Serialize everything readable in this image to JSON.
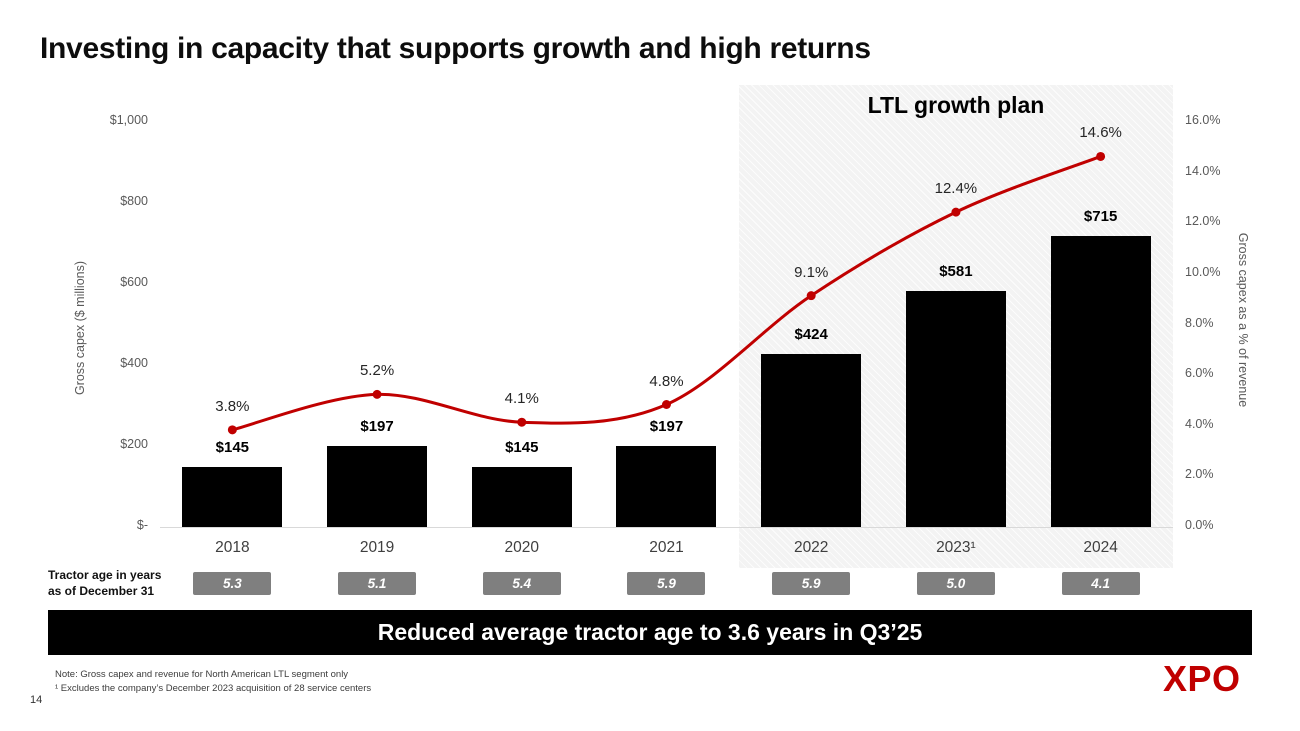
{
  "title": "Investing in capacity that supports growth and high returns",
  "page_number": "14",
  "logo_text": "XPO",
  "chart_data": {
    "type": "combo",
    "region_label": "LTL growth plan",
    "region_categories": [
      "2022",
      "2023¹",
      "2024"
    ],
    "categories": [
      "2018",
      "2019",
      "2020",
      "2021",
      "2022",
      "2023¹",
      "2024"
    ],
    "series": [
      {
        "name": "Gross capex ($ millions)",
        "type": "bar",
        "color": "#000000",
        "values": [
          145,
          197,
          145,
          197,
          424,
          581,
          715
        ],
        "labels": [
          "$145",
          "$197",
          "$145",
          "$197",
          "$424",
          "$581",
          "$715"
        ]
      },
      {
        "name": "Gross capex as a % of revenue",
        "type": "line",
        "color": "#c00000",
        "values": [
          3.8,
          5.2,
          4.1,
          4.8,
          9.1,
          12.4,
          14.6
        ],
        "labels": [
          "3.8%",
          "5.2%",
          "4.1%",
          "4.8%",
          "9.1%",
          "12.4%",
          "14.6%"
        ]
      }
    ],
    "ylabel_left": "Gross capex ($ millions)",
    "ylabel_right": "Gross capex as a % of revenue",
    "left_axis": {
      "min": 0,
      "max": 1000,
      "ticks": [
        {
          "label": "$1,000",
          "value": 1000
        },
        {
          "label": "$800",
          "value": 800
        },
        {
          "label": "$600",
          "value": 600
        },
        {
          "label": "$400",
          "value": 400
        },
        {
          "label": "$200",
          "value": 200
        },
        {
          "label": "$-",
          "value": 0
        }
      ]
    },
    "right_axis": {
      "min": 0,
      "max": 16,
      "ticks": [
        {
          "label": "16.0%",
          "value": 16
        },
        {
          "label": "14.0%",
          "value": 14
        },
        {
          "label": "12.0%",
          "value": 12
        },
        {
          "label": "10.0%",
          "value": 10
        },
        {
          "label": "8.0%",
          "value": 8
        },
        {
          "label": "6.0%",
          "value": 6
        },
        {
          "label": "4.0%",
          "value": 4
        },
        {
          "label": "2.0%",
          "value": 2
        },
        {
          "label": "0.0%",
          "value": 0
        }
      ]
    },
    "grid": "off",
    "legend": "none"
  },
  "tractor": {
    "label_line1": "Tractor age in years",
    "label_line2": "as of December 31",
    "values": [
      "5.3",
      "5.1",
      "5.4",
      "5.9",
      "5.9",
      "5.0",
      "4.1"
    ]
  },
  "banner": {
    "text": "Reduced average tractor age to 3.6 years in Q3’25"
  },
  "footnotes": {
    "note1": "Note: Gross capex and revenue for North American LTL segment only",
    "note2": "¹ Excludes the company’s December 2023 acquisition of 28 service centers"
  }
}
